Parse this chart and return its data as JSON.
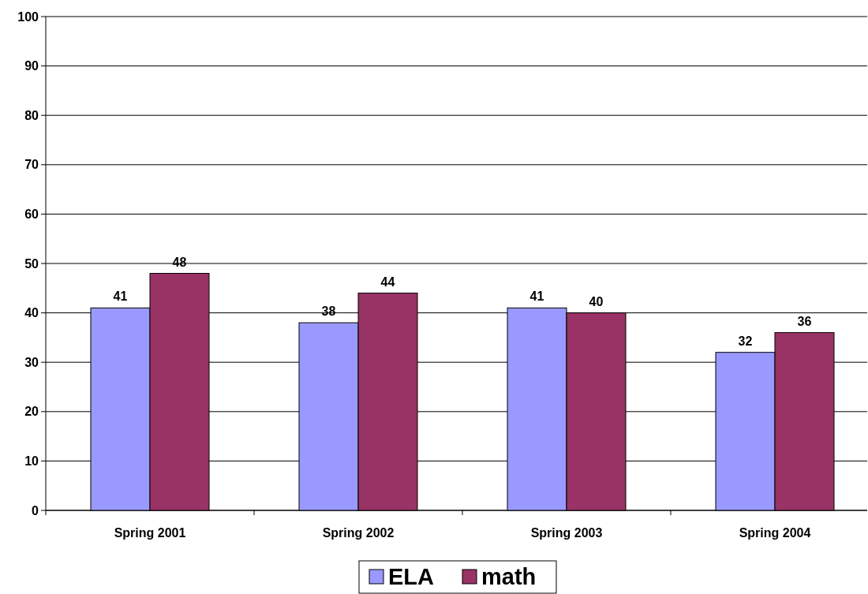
{
  "chart_data": {
    "type": "bar",
    "categories": [
      "Spring 2001",
      "Spring 2002",
      "Spring 2003",
      "Spring 2004"
    ],
    "series": [
      {
        "name": "ELA",
        "color": "#9999ff",
        "values": [
          41,
          38,
          41,
          32
        ]
      },
      {
        "name": "math",
        "color": "#993366",
        "values": [
          48,
          44,
          40,
          36
        ]
      }
    ],
    "ylim": [
      0,
      100
    ],
    "yticks": [
      0,
      10,
      20,
      30,
      40,
      50,
      60,
      70,
      80,
      90,
      100
    ],
    "grid": "y",
    "legend": "bottom",
    "data_labels": true
  }
}
